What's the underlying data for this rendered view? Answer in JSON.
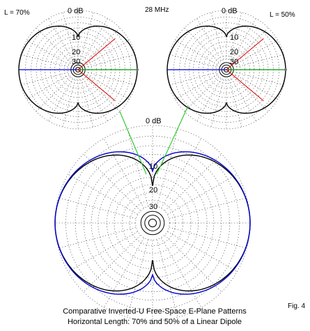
{
  "figure": {
    "frequency": "28 MHz",
    "fig_label": "Fig. 4",
    "caption_line1": "Comparative Inverted-U Free-Space E-Plane Patterns",
    "caption_line2": "Horizontal Length:  70% and 50% of a Linear Dipole"
  },
  "left_plot": {
    "length_label": "L = 70%",
    "ring_labels": [
      "0 dB",
      "10",
      "20",
      "30"
    ]
  },
  "right_plot": {
    "length_label": "L = 50%",
    "ring_labels": [
      "0 dB",
      "10",
      "20",
      "30"
    ]
  },
  "main_plot": {
    "ring_labels": [
      "0 dB",
      "10",
      "20",
      "30"
    ]
  },
  "colors": {
    "pattern_black": "#000000",
    "pattern_blue": "#0000cc",
    "axis_blue": "#0000dd",
    "axis_green": "#009900",
    "axis_red": "#dd0000",
    "connector_green": "#33cc33",
    "grid": "#444444"
  }
}
